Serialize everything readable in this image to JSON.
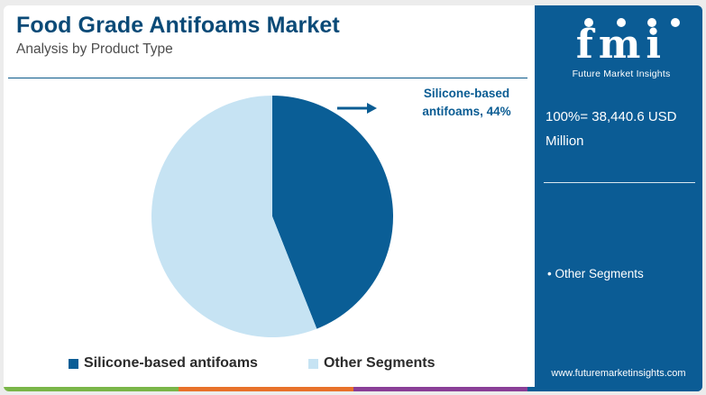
{
  "header": {
    "title": "Food Grade Antifoams Market",
    "subtitle": "Analysis by Product Type"
  },
  "chart_data": {
    "type": "pie",
    "title": "Food Grade Antifoams Market",
    "subtitle": "Analysis by Product Type",
    "slices": [
      {
        "label": "Silicone-based antifoams",
        "value": 44,
        "color": "#0a5e96"
      },
      {
        "label": "Other Segments",
        "value": 56,
        "color": "#c6e3f3"
      }
    ],
    "callout": {
      "line1": "Silicone-based",
      "line2": "antifoams, 44%"
    },
    "legend_position": "bottom",
    "legend": [
      "Silicone-based antifoams",
      "Other Segments"
    ]
  },
  "sidebar": {
    "logo_text": "fmi",
    "logo_subtitle": "Future Market Insights",
    "total_line1": "100%= 38,440.6 USD",
    "total_line2": "Million",
    "bullet": "• Other Segments",
    "website": "www.futuremarketinsights.com",
    "color": "#0b5c95"
  },
  "footer_colors": [
    "#7ab648",
    "#e8712a",
    "#8a3f97",
    "#0b5c95"
  ],
  "icons": [
    "arrow-right-icon",
    "logo-glyph-icon"
  ]
}
